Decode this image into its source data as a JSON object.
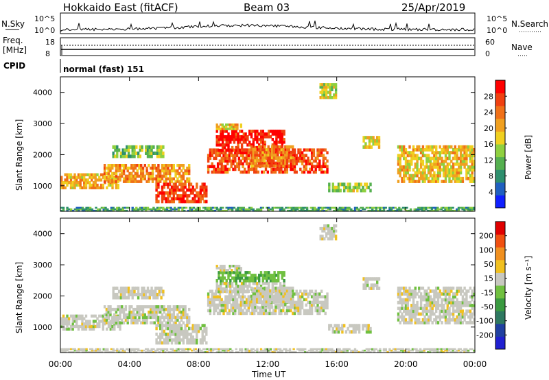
{
  "header": {
    "station": "Hokkaido East (fitACF)",
    "beam": "Beam 03",
    "date": "25/Apr/2019"
  },
  "noise_panel": {
    "left_label": "N.Sky",
    "right_label": "N.Search",
    "left_ticks": [
      "10^5",
      "10^0"
    ],
    "right_ticks": [
      "10^5",
      "10^0"
    ]
  },
  "freq_panel": {
    "left_label_line1": "Freq.",
    "left_label_line2": "[MHz]",
    "left_ticks": [
      "18",
      "8"
    ],
    "right_label": "Nave",
    "right_ticks": [
      "60",
      "0"
    ]
  },
  "cpid": {
    "label": "CPID",
    "text": "normal (fast) 151"
  },
  "time_axis": {
    "label": "Time UT",
    "ticks": [
      "00:00",
      "04:00",
      "08:00",
      "12:00",
      "16:00",
      "20:00",
      "00:00"
    ]
  },
  "chart_data": [
    {
      "type": "heatmap",
      "name": "power",
      "xlabel": "Time UT",
      "ylabel": "Slant Range [km]",
      "xlim": [
        0,
        24
      ],
      "ylim": [
        180,
        4500
      ],
      "yticks": [
        "1000",
        "2000",
        "3000",
        "4000"
      ],
      "colorbar": {
        "title": "Power [dB]",
        "ticks": [
          "4",
          "8",
          "12",
          "16",
          "20",
          "24",
          "28"
        ],
        "colors": [
          "#1020ff",
          "#2060c0",
          "#2e8f6e",
          "#55b050",
          "#8fd040",
          "#f0d020",
          "#f0a020",
          "#f07018",
          "#f04010",
          "#ff0000"
        ]
      }
    },
    {
      "type": "heatmap",
      "name": "velocity",
      "xlabel": "Time UT",
      "ylabel": "Slant Range [km]",
      "xlim": [
        0,
        24
      ],
      "ylim": [
        180,
        4500
      ],
      "yticks": [
        "1000",
        "2000",
        "3000",
        "4000"
      ],
      "colorbar": {
        "title": "Velocity [m s⁻¹]",
        "ticks": [
          "200",
          "100",
          "50",
          "15",
          "-15",
          "-50",
          "-100",
          "-200"
        ],
        "colors": [
          "#2020d0",
          "#2040a0",
          "#2e7860",
          "#3a9a40",
          "#70c040",
          "#c8c8c0",
          "#f0c020",
          "#f09020",
          "#f05010",
          "#e00000"
        ]
      }
    }
  ]
}
